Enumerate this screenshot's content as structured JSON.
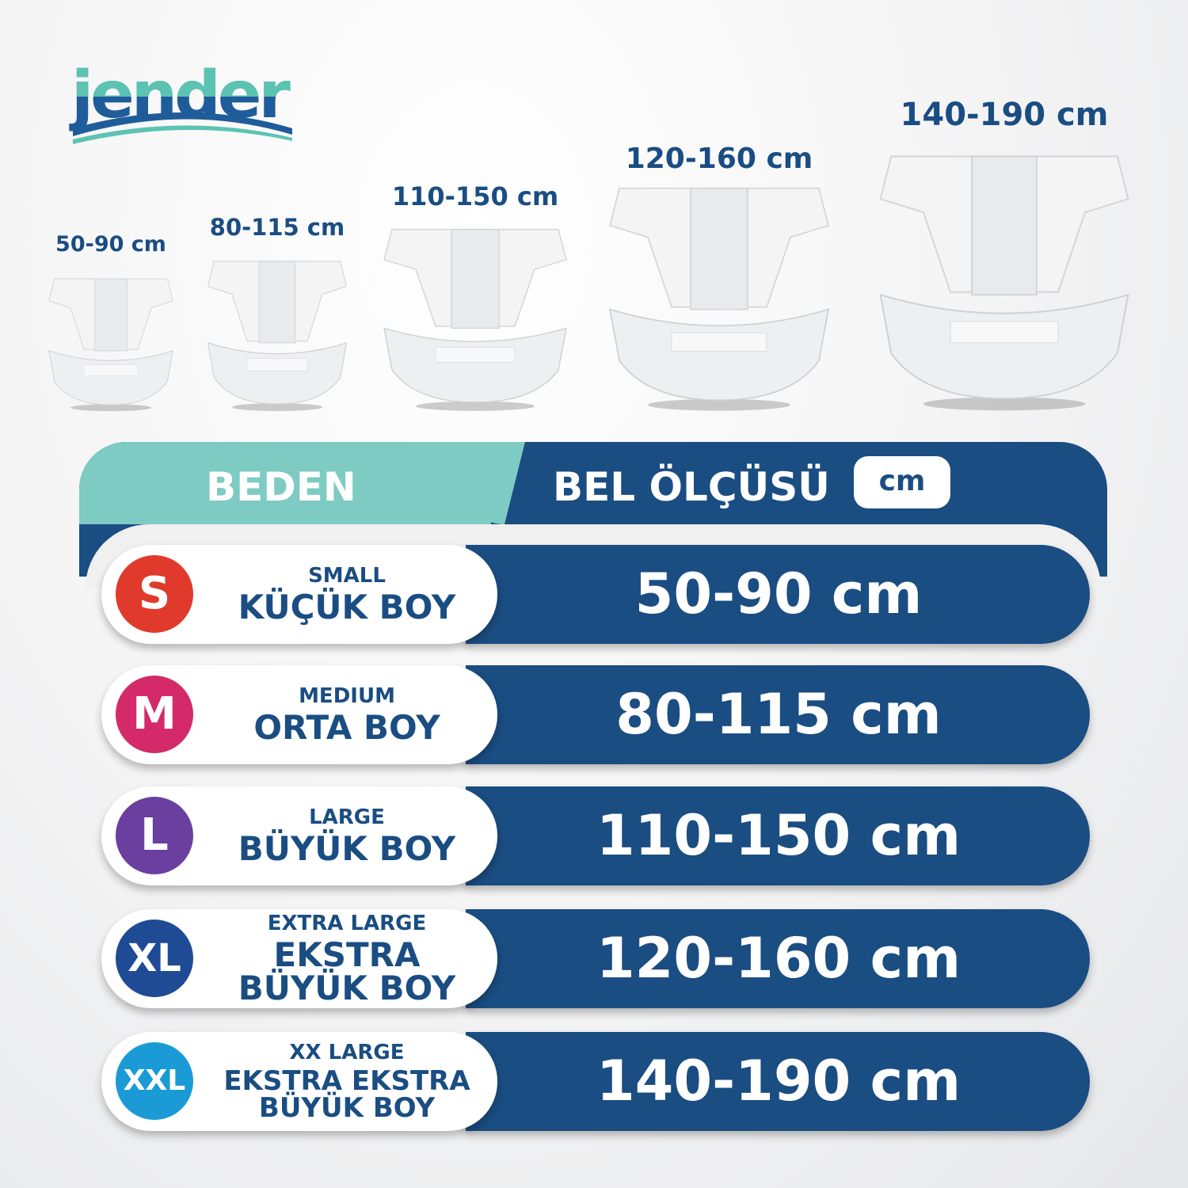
{
  "brand": {
    "logo_text": "jender",
    "colors": {
      "teal": "#5cc3b3",
      "blue": "#1a4d82"
    }
  },
  "product_sizes": [
    {
      "label": "50-90 cm"
    },
    {
      "label": "80-115 cm"
    },
    {
      "label": "110-150 cm"
    },
    {
      "label": "120-160 cm"
    },
    {
      "label": "140-190 cm"
    }
  ],
  "table": {
    "header": {
      "size_label": "BEDEN",
      "waist_label": "BEL ÖLÇÜSÜ",
      "unit": "cm"
    },
    "rows": [
      {
        "badge": "S",
        "badge_color": "#e03a2c",
        "english": "SMALL",
        "turkish": "KÜÇÜK BOY",
        "range": "50-90 cm"
      },
      {
        "badge": "M",
        "badge_color": "#d42a6a",
        "english": "MEDIUM",
        "turkish": "ORTA BOY",
        "range": "80-115 cm"
      },
      {
        "badge": "L",
        "badge_color": "#6a3fa0",
        "english": "LARGE",
        "turkish": "BÜYÜK BOY",
        "range": "110-150 cm"
      },
      {
        "badge": "XL",
        "badge_color": "#1e4b93",
        "english": "EXTRA LARGE",
        "turkish": "EKSTRA BÜYÜK BOY",
        "range": "120-160 cm"
      },
      {
        "badge": "XXL",
        "badge_color": "#1a9bd6",
        "english": "XX LARGE",
        "turkish": "EKSTRA EKSTRA BÜYÜK BOY",
        "range": "140-190 cm"
      }
    ]
  },
  "colors": {
    "dark_blue": "#1a4d82",
    "teal": "#7ecbc3"
  }
}
